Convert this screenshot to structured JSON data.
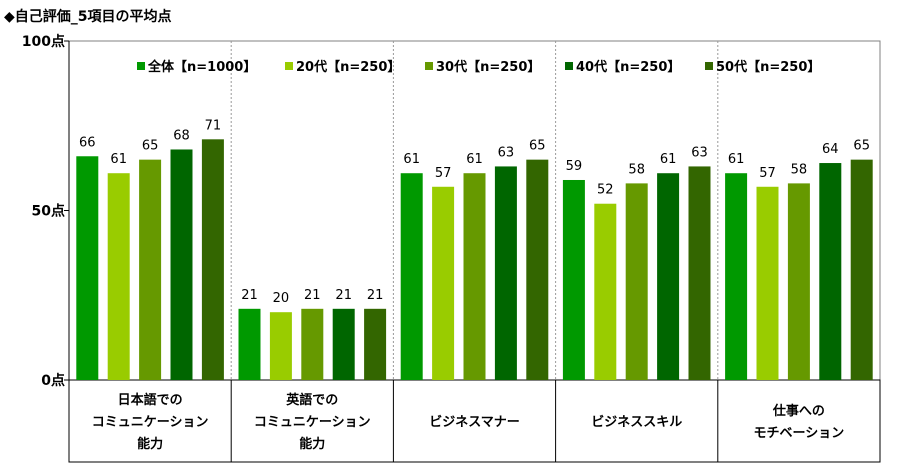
{
  "title": "◆自己評価_5項目の平均点",
  "colors": [
    "#009900",
    "#99cc00",
    "#669900",
    "#006600",
    "#336600"
  ],
  "chart_data": {
    "type": "bar",
    "title": "◆自己評価_5項目の平均点",
    "ylim": [
      0,
      100
    ],
    "yticks": [
      "0点",
      "50点",
      "100点"
    ],
    "ytick_values": [
      0,
      50,
      100
    ],
    "legend_position": "top",
    "categories": [
      [
        "日本語での",
        "コミュニケーション",
        "能力"
      ],
      [
        "英語での",
        "コミュニケーション",
        "能力"
      ],
      [
        "ビジネスマナー"
      ],
      [
        "ビジネススキル"
      ],
      [
        "仕事への",
        "モチベーション"
      ]
    ],
    "series": [
      {
        "name": "全体【n=1000】",
        "values": [
          66,
          21,
          61,
          59,
          61
        ]
      },
      {
        "name": "20代【n=250】",
        "values": [
          61,
          20,
          57,
          52,
          57
        ]
      },
      {
        "name": "30代【n=250】",
        "values": [
          65,
          21,
          61,
          58,
          58
        ]
      },
      {
        "name": "40代【n=250】",
        "values": [
          68,
          21,
          63,
          61,
          64
        ]
      },
      {
        "name": "50代【n=250】",
        "values": [
          71,
          21,
          65,
          63,
          65
        ]
      }
    ]
  }
}
